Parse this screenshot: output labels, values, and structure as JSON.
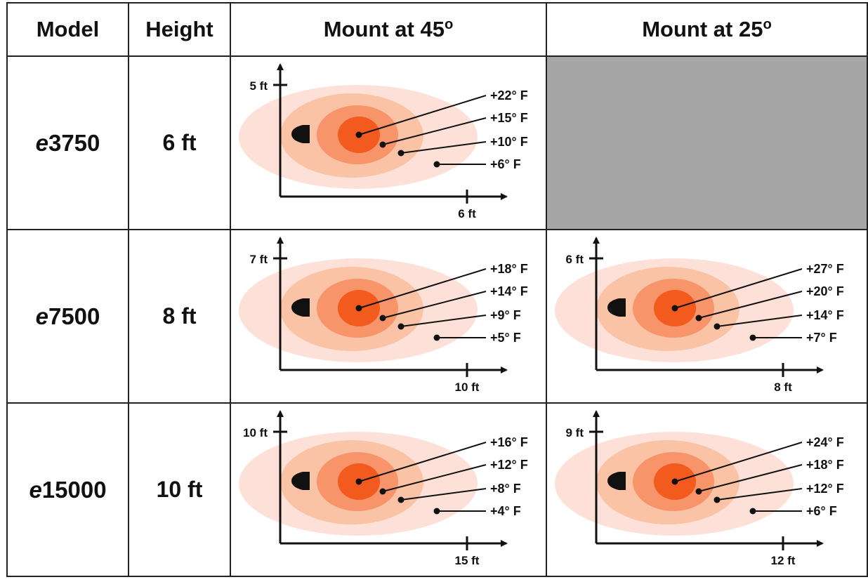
{
  "header": {
    "model": "Model",
    "height": "Height",
    "mount45": "Mount at 45",
    "mount25": "Mount at 25",
    "degree_mark": "o"
  },
  "rows": [
    {
      "model_prefix": "e",
      "model_number": "3750",
      "height": "6 ft",
      "mount45": {
        "y_label": "5 ft",
        "x_label": "6 ft",
        "temps": [
          "+22° F",
          "+15° F",
          "+10° F",
          "+6° F"
        ]
      },
      "mount25": null
    },
    {
      "model_prefix": "e",
      "model_number": "7500",
      "height": "8 ft",
      "mount45": {
        "y_label": "7 ft",
        "x_label": "10 ft",
        "temps": [
          "+18° F",
          "+14° F",
          "+9° F",
          "+5° F"
        ]
      },
      "mount25": {
        "y_label": "6 ft",
        "x_label": "8 ft",
        "temps": [
          "+27° F",
          "+20° F",
          "+14° F",
          "+7° F"
        ]
      }
    },
    {
      "model_prefix": "e",
      "model_number": "15000",
      "height": "10 ft",
      "mount45": {
        "y_label": "10 ft",
        "x_label": "15 ft",
        "temps": [
          "+16° F",
          "+12° F",
          "+8° F",
          "+4° F"
        ]
      },
      "mount25": {
        "y_label": "9 ft",
        "x_label": "12 ft",
        "temps": [
          "+24° F",
          "+18° F",
          "+12° F",
          "+6° F"
        ]
      }
    }
  ],
  "colors": {
    "zone1": "#f25a1e",
    "zone2": "#f7946a",
    "zone3": "#fac3a6",
    "zone4": "#fde1d8",
    "empty_cell": "#a6a6a6"
  }
}
